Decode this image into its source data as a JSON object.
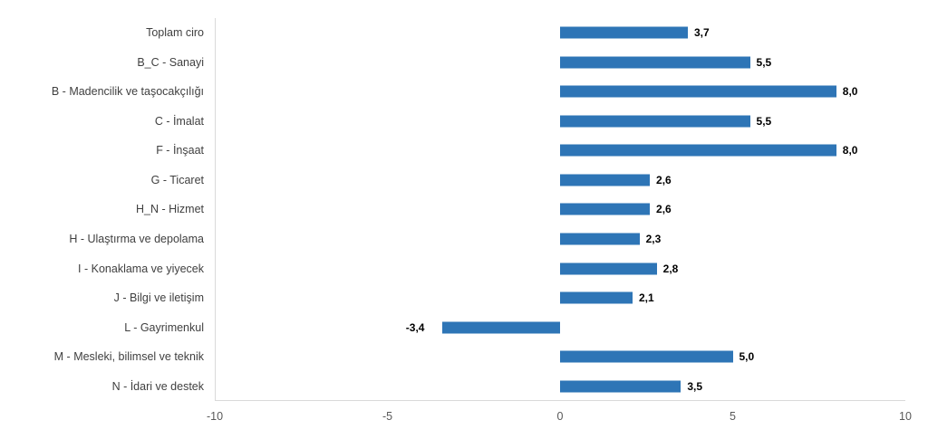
{
  "chart_data": {
    "type": "bar",
    "orientation": "horizontal",
    "categories": [
      "Toplam ciro",
      "B_C - Sanayi",
      "B - Madencilik ve taşocakçılığı",
      "C - İmalat",
      "F - İnşaat",
      "G - Ticaret",
      "H_N - Hizmet",
      "H - Ulaştırma ve depolama",
      "I - Konaklama ve yiyecek",
      "J - Bilgi ve iletişim",
      "L - Gayrimenkul",
      "M - Mesleki, bilimsel ve teknik",
      "N - İdari ve destek"
    ],
    "values": [
      3.7,
      5.5,
      8.0,
      5.5,
      8.0,
      2.6,
      2.6,
      2.3,
      2.8,
      2.1,
      -3.4,
      5.0,
      3.5
    ],
    "value_labels": [
      "3,7",
      "5,5",
      "8,0",
      "5,5",
      "8,0",
      "2,6",
      "2,6",
      "2,3",
      "2,8",
      "2,1",
      "-3,4",
      "5,0",
      "3,5"
    ],
    "x_ticks": [
      -10,
      -5,
      0,
      5,
      10
    ],
    "x_tick_labels": [
      "-10",
      "-5",
      "0",
      "5",
      "10"
    ],
    "xlim": [
      -10,
      10
    ],
    "grid": false,
    "legend": false,
    "colors": {
      "bar": "#2E75B6",
      "category_label": "#404040",
      "value_label": "#000000",
      "tick_label": "#595959",
      "axis_line": "#D9D9D9"
    }
  }
}
